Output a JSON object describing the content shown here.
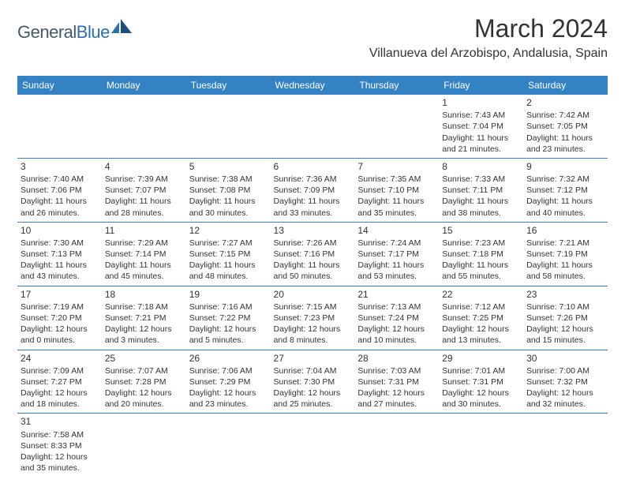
{
  "logo": {
    "part1": "General",
    "part2": "Blue"
  },
  "header": {
    "title": "March 2024",
    "location": "Villanueva del Arzobispo, Andalusia, Spain"
  },
  "colors": {
    "header_bg": "#3481c4",
    "header_fg": "#ffffff",
    "border": "#3481c4",
    "text": "#333333",
    "logo_dark": "#4a5866",
    "logo_blue": "#2f6fa8"
  },
  "daynames": [
    "Sunday",
    "Monday",
    "Tuesday",
    "Wednesday",
    "Thursday",
    "Friday",
    "Saturday"
  ],
  "weeks": [
    [
      null,
      null,
      null,
      null,
      null,
      {
        "n": "1",
        "sunrise": "Sunrise: 7:43 AM",
        "sunset": "Sunset: 7:04 PM",
        "daylight": "Daylight: 11 hours and 21 minutes."
      },
      {
        "n": "2",
        "sunrise": "Sunrise: 7:42 AM",
        "sunset": "Sunset: 7:05 PM",
        "daylight": "Daylight: 11 hours and 23 minutes."
      }
    ],
    [
      {
        "n": "3",
        "sunrise": "Sunrise: 7:40 AM",
        "sunset": "Sunset: 7:06 PM",
        "daylight": "Daylight: 11 hours and 26 minutes."
      },
      {
        "n": "4",
        "sunrise": "Sunrise: 7:39 AM",
        "sunset": "Sunset: 7:07 PM",
        "daylight": "Daylight: 11 hours and 28 minutes."
      },
      {
        "n": "5",
        "sunrise": "Sunrise: 7:38 AM",
        "sunset": "Sunset: 7:08 PM",
        "daylight": "Daylight: 11 hours and 30 minutes."
      },
      {
        "n": "6",
        "sunrise": "Sunrise: 7:36 AM",
        "sunset": "Sunset: 7:09 PM",
        "daylight": "Daylight: 11 hours and 33 minutes."
      },
      {
        "n": "7",
        "sunrise": "Sunrise: 7:35 AM",
        "sunset": "Sunset: 7:10 PM",
        "daylight": "Daylight: 11 hours and 35 minutes."
      },
      {
        "n": "8",
        "sunrise": "Sunrise: 7:33 AM",
        "sunset": "Sunset: 7:11 PM",
        "daylight": "Daylight: 11 hours and 38 minutes."
      },
      {
        "n": "9",
        "sunrise": "Sunrise: 7:32 AM",
        "sunset": "Sunset: 7:12 PM",
        "daylight": "Daylight: 11 hours and 40 minutes."
      }
    ],
    [
      {
        "n": "10",
        "sunrise": "Sunrise: 7:30 AM",
        "sunset": "Sunset: 7:13 PM",
        "daylight": "Daylight: 11 hours and 43 minutes."
      },
      {
        "n": "11",
        "sunrise": "Sunrise: 7:29 AM",
        "sunset": "Sunset: 7:14 PM",
        "daylight": "Daylight: 11 hours and 45 minutes."
      },
      {
        "n": "12",
        "sunrise": "Sunrise: 7:27 AM",
        "sunset": "Sunset: 7:15 PM",
        "daylight": "Daylight: 11 hours and 48 minutes."
      },
      {
        "n": "13",
        "sunrise": "Sunrise: 7:26 AM",
        "sunset": "Sunset: 7:16 PM",
        "daylight": "Daylight: 11 hours and 50 minutes."
      },
      {
        "n": "14",
        "sunrise": "Sunrise: 7:24 AM",
        "sunset": "Sunset: 7:17 PM",
        "daylight": "Daylight: 11 hours and 53 minutes."
      },
      {
        "n": "15",
        "sunrise": "Sunrise: 7:23 AM",
        "sunset": "Sunset: 7:18 PM",
        "daylight": "Daylight: 11 hours and 55 minutes."
      },
      {
        "n": "16",
        "sunrise": "Sunrise: 7:21 AM",
        "sunset": "Sunset: 7:19 PM",
        "daylight": "Daylight: 11 hours and 58 minutes."
      }
    ],
    [
      {
        "n": "17",
        "sunrise": "Sunrise: 7:19 AM",
        "sunset": "Sunset: 7:20 PM",
        "daylight": "Daylight: 12 hours and 0 minutes."
      },
      {
        "n": "18",
        "sunrise": "Sunrise: 7:18 AM",
        "sunset": "Sunset: 7:21 PM",
        "daylight": "Daylight: 12 hours and 3 minutes."
      },
      {
        "n": "19",
        "sunrise": "Sunrise: 7:16 AM",
        "sunset": "Sunset: 7:22 PM",
        "daylight": "Daylight: 12 hours and 5 minutes."
      },
      {
        "n": "20",
        "sunrise": "Sunrise: 7:15 AM",
        "sunset": "Sunset: 7:23 PM",
        "daylight": "Daylight: 12 hours and 8 minutes."
      },
      {
        "n": "21",
        "sunrise": "Sunrise: 7:13 AM",
        "sunset": "Sunset: 7:24 PM",
        "daylight": "Daylight: 12 hours and 10 minutes."
      },
      {
        "n": "22",
        "sunrise": "Sunrise: 7:12 AM",
        "sunset": "Sunset: 7:25 PM",
        "daylight": "Daylight: 12 hours and 13 minutes."
      },
      {
        "n": "23",
        "sunrise": "Sunrise: 7:10 AM",
        "sunset": "Sunset: 7:26 PM",
        "daylight": "Daylight: 12 hours and 15 minutes."
      }
    ],
    [
      {
        "n": "24",
        "sunrise": "Sunrise: 7:09 AM",
        "sunset": "Sunset: 7:27 PM",
        "daylight": "Daylight: 12 hours and 18 minutes."
      },
      {
        "n": "25",
        "sunrise": "Sunrise: 7:07 AM",
        "sunset": "Sunset: 7:28 PM",
        "daylight": "Daylight: 12 hours and 20 minutes."
      },
      {
        "n": "26",
        "sunrise": "Sunrise: 7:06 AM",
        "sunset": "Sunset: 7:29 PM",
        "daylight": "Daylight: 12 hours and 23 minutes."
      },
      {
        "n": "27",
        "sunrise": "Sunrise: 7:04 AM",
        "sunset": "Sunset: 7:30 PM",
        "daylight": "Daylight: 12 hours and 25 minutes."
      },
      {
        "n": "28",
        "sunrise": "Sunrise: 7:03 AM",
        "sunset": "Sunset: 7:31 PM",
        "daylight": "Daylight: 12 hours and 27 minutes."
      },
      {
        "n": "29",
        "sunrise": "Sunrise: 7:01 AM",
        "sunset": "Sunset: 7:31 PM",
        "daylight": "Daylight: 12 hours and 30 minutes."
      },
      {
        "n": "30",
        "sunrise": "Sunrise: 7:00 AM",
        "sunset": "Sunset: 7:32 PM",
        "daylight": "Daylight: 12 hours and 32 minutes."
      }
    ],
    [
      {
        "n": "31",
        "sunrise": "Sunrise: 7:58 AM",
        "sunset": "Sunset: 8:33 PM",
        "daylight": "Daylight: 12 hours and 35 minutes."
      },
      null,
      null,
      null,
      null,
      null,
      null
    ]
  ]
}
